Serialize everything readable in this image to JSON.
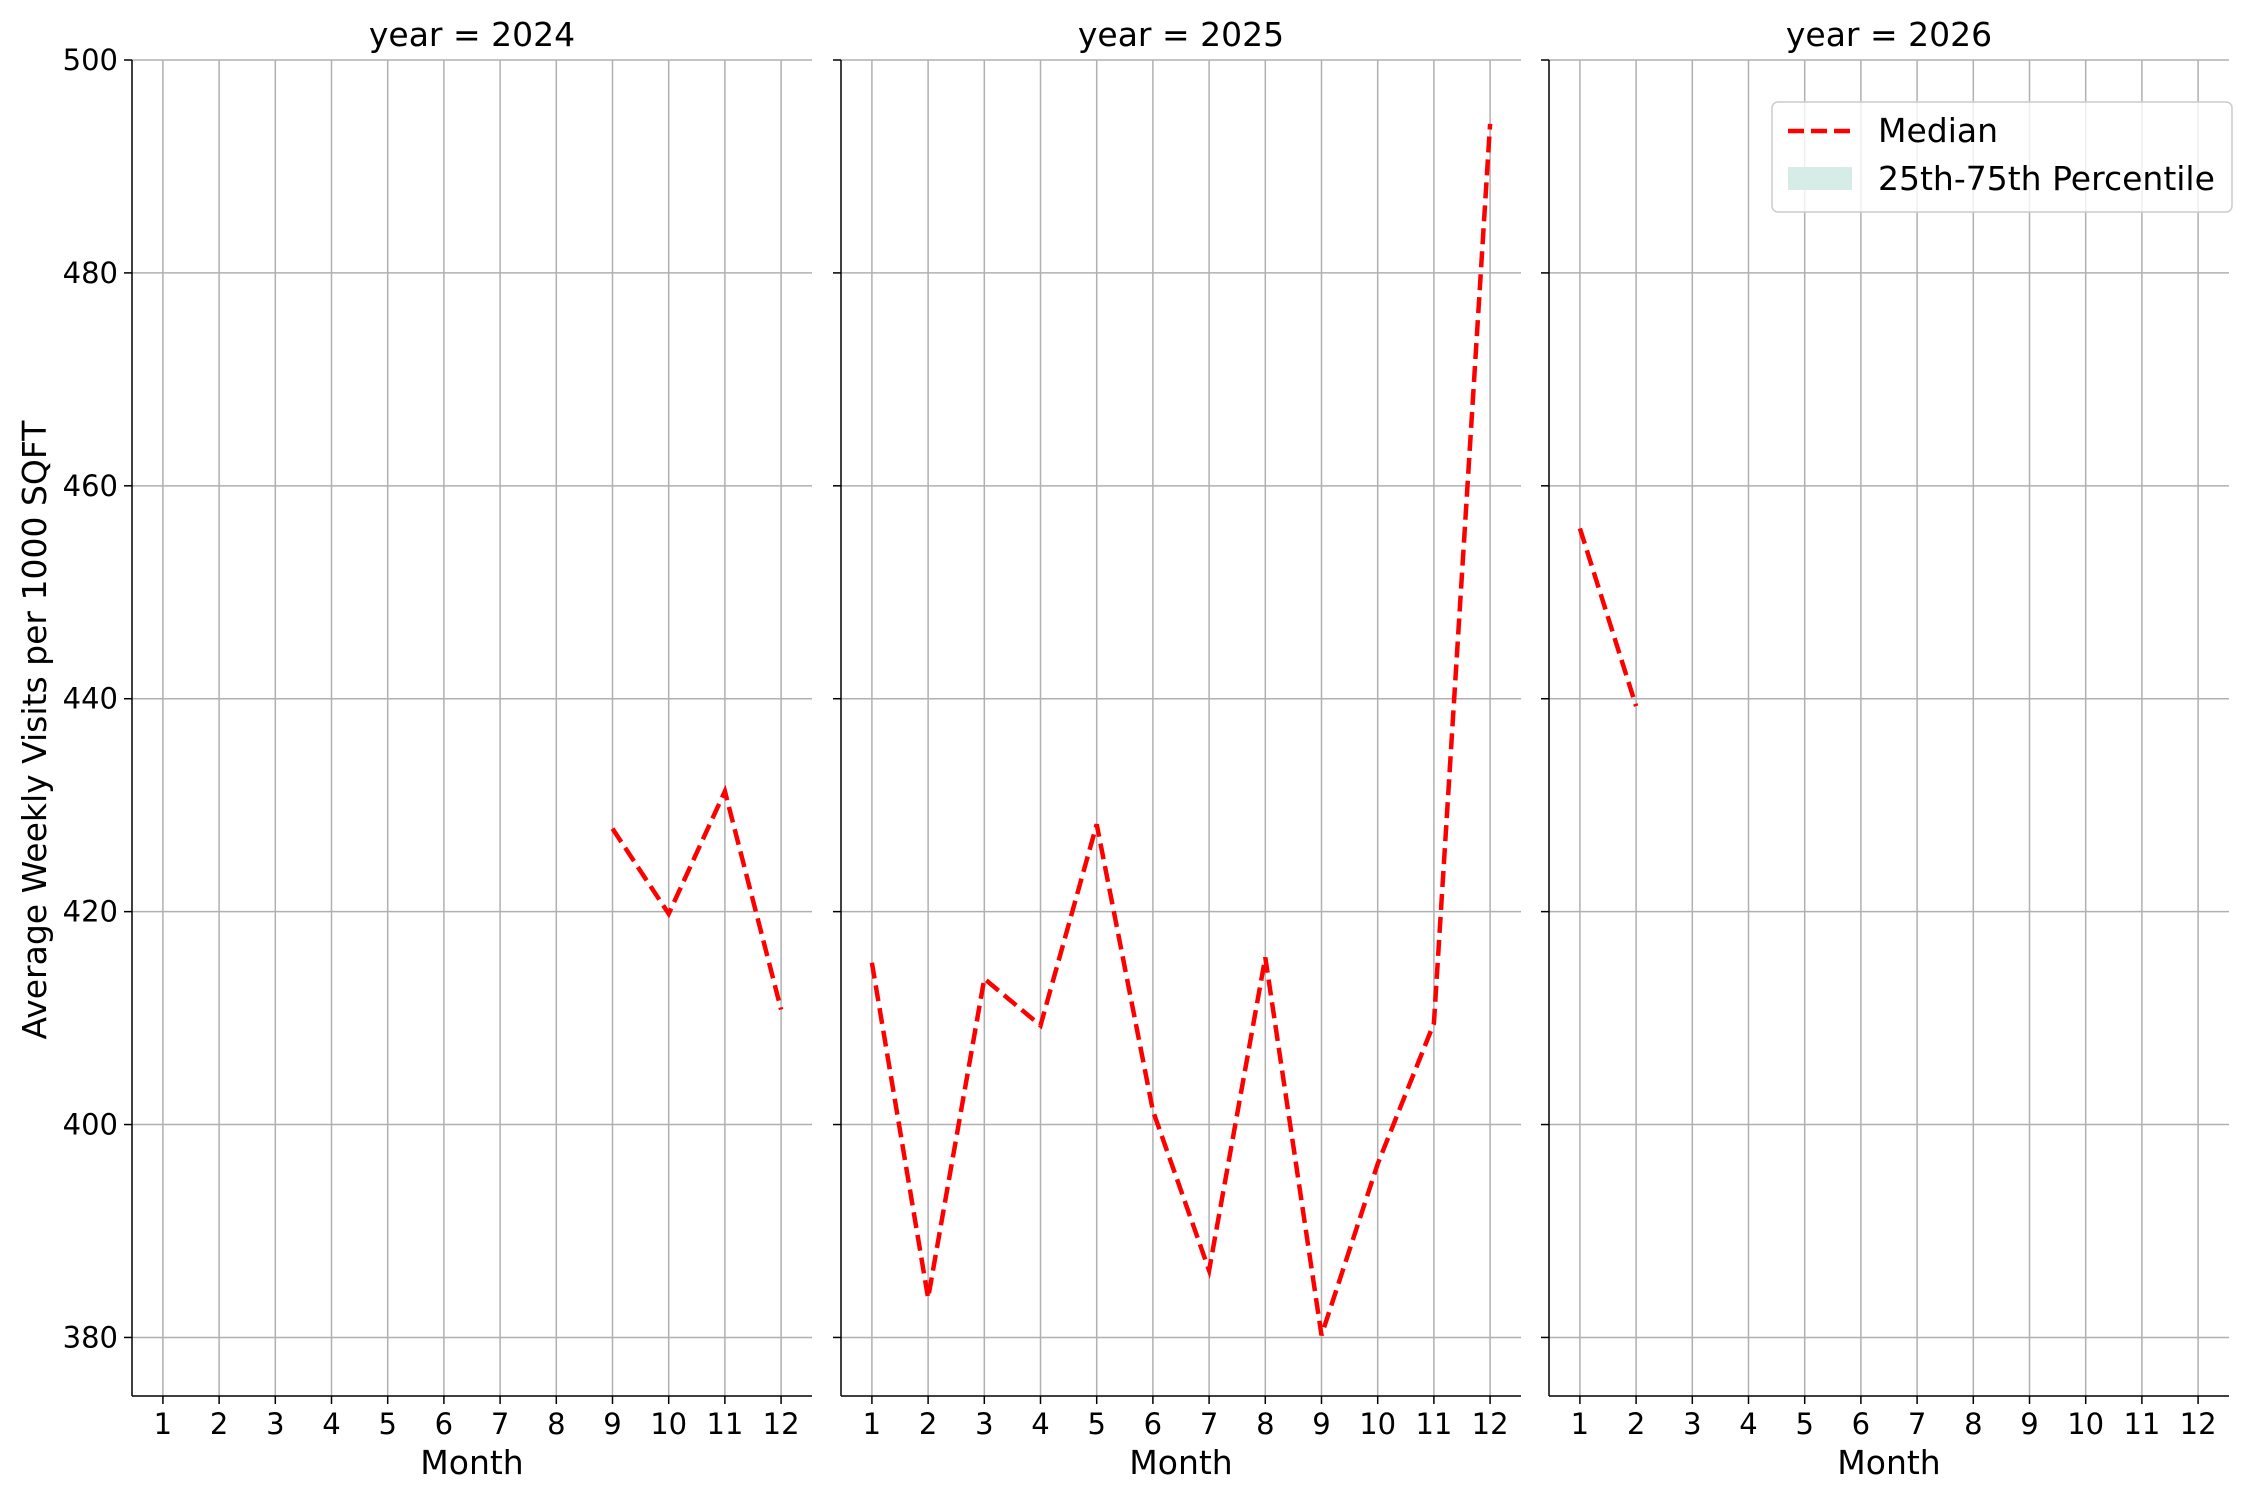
{
  "chart_data": {
    "type": "line",
    "ylabel": "Average Weekly Visits per 1000 SQFT",
    "xlabel": "Month",
    "ylim": [
      374.5,
      500
    ],
    "yticks": [
      380,
      400,
      420,
      440,
      460,
      480,
      500
    ],
    "xticks": [
      "1",
      "2",
      "3",
      "4",
      "5",
      "6",
      "7",
      "8",
      "9",
      "10",
      "11",
      "12"
    ],
    "grid": true,
    "legend": {
      "placement": "top-right",
      "entries": [
        "Median",
        "25th-75th Percentile"
      ]
    },
    "colors": {
      "median": "#ff0000",
      "percentile_band": "#d6ece6",
      "grid": "#b0b0b0"
    },
    "panels": [
      {
        "title": "year = 2024",
        "series": [
          {
            "name": "Median",
            "x": [
              9,
              10,
              11,
              12
            ],
            "y": [
              427.8,
              419.8,
              431.3,
              410.8
            ]
          }
        ]
      },
      {
        "title": "year = 2025",
        "series": [
          {
            "name": "Median",
            "x": [
              1,
              2,
              3,
              4,
              5,
              6,
              7,
              8,
              9,
              10,
              11,
              12
            ],
            "y": [
              415.2,
              383.7,
              413.7,
              409.3,
              428.2,
              401.3,
              386.3,
              415.7,
              380.2,
              396.3,
              409.5,
              494.0
            ]
          }
        ]
      },
      {
        "title": "year = 2026",
        "series": [
          {
            "name": "Median",
            "x": [
              1,
              2
            ],
            "y": [
              456.0,
              439.3
            ]
          }
        ]
      }
    ]
  }
}
